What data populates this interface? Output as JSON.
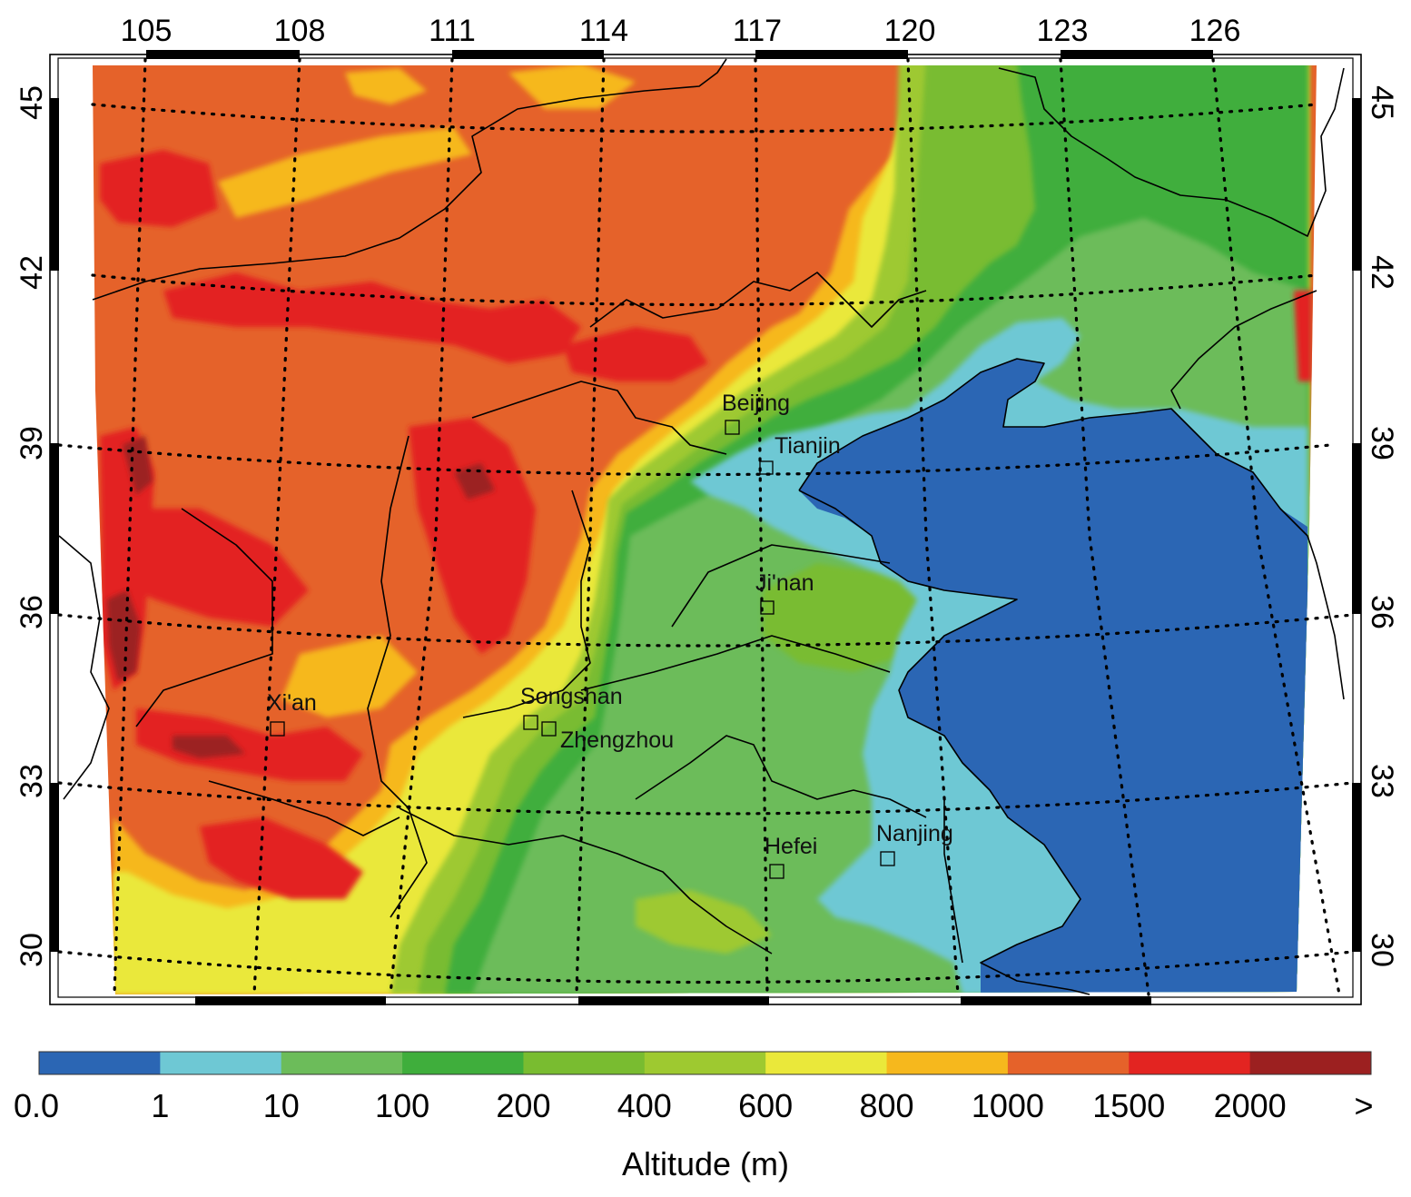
{
  "map": {
    "longitude_labels": [
      "105",
      "108",
      "111",
      "114",
      "117",
      "120",
      "123",
      "126"
    ],
    "latitude_labels": [
      "45",
      "42",
      "39",
      "36",
      "33",
      "30"
    ],
    "cities": [
      {
        "name": "Beijing"
      },
      {
        "name": "Tianjin"
      },
      {
        "name": "Ji'nan"
      },
      {
        "name": "Xi'an"
      },
      {
        "name": "Songshan"
      },
      {
        "name": "Zhengzhou"
      },
      {
        "name": "Hefei"
      },
      {
        "name": "Nanjing"
      }
    ]
  },
  "legend": {
    "title": "Altitude (m)",
    "labels": [
      "0.0",
      "1",
      "10",
      "100",
      "200",
      "400",
      "600",
      "800",
      "1000",
      "1500",
      "2000",
      ">"
    ],
    "colors": [
      "#2b66b4",
      "#6ec8d4",
      "#6cbc5a",
      "#3fae3c",
      "#79bc30",
      "#9ec930",
      "#eae83a",
      "#f6b81d",
      "#e5622a",
      "#e32421",
      "#9c2020"
    ]
  }
}
